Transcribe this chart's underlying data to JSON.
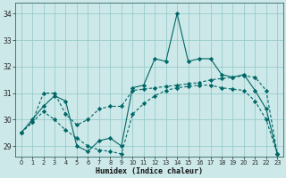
{
  "xlabel": "Humidex (Indice chaleur)",
  "x_ticks": [
    0,
    1,
    2,
    3,
    4,
    5,
    6,
    7,
    8,
    9,
    10,
    11,
    12,
    13,
    14,
    15,
    16,
    17,
    18,
    19,
    20,
    21,
    22,
    23
  ],
  "ylim": [
    28.6,
    34.4
  ],
  "yticks": [
    29,
    30,
    31,
    32,
    33,
    34
  ],
  "xlim": [
    -0.5,
    23.5
  ],
  "bg_color": "#cce8e8",
  "line_color": "#006666",
  "grid_color": "#99cccc",
  "s1_x": [
    0,
    1,
    2,
    3,
    4,
    5,
    6,
    7,
    8,
    9,
    10,
    11,
    12,
    13,
    14,
    15,
    16,
    17,
    18,
    19,
    20,
    21,
    22,
    23
  ],
  "s1_y": [
    29.5,
    30.0,
    30.5,
    30.9,
    30.7,
    29.0,
    28.8,
    29.2,
    29.3,
    29.0,
    31.2,
    31.3,
    32.3,
    32.2,
    34.0,
    32.2,
    32.3,
    32.3,
    31.7,
    31.6,
    31.7,
    31.1,
    30.4,
    28.7
  ],
  "s2_x": [
    0,
    1,
    2,
    3,
    4,
    5,
    6,
    7,
    8,
    9,
    10,
    11,
    12,
    13,
    14,
    15,
    16,
    17,
    18,
    19,
    20,
    21,
    22,
    23
  ],
  "s2_y": [
    29.5,
    29.9,
    31.0,
    31.0,
    30.2,
    29.8,
    30.0,
    30.4,
    30.5,
    30.5,
    31.1,
    31.15,
    31.2,
    31.25,
    31.3,
    31.35,
    31.4,
    31.5,
    31.55,
    31.6,
    31.65,
    31.6,
    31.1,
    28.7
  ],
  "s3_x": [
    0,
    1,
    2,
    3,
    4,
    5,
    6,
    7,
    8,
    9,
    10,
    11,
    12,
    13,
    14,
    15,
    16,
    17,
    18,
    19,
    20,
    21,
    22,
    23
  ],
  "s3_y": [
    29.5,
    29.9,
    30.3,
    30.0,
    29.6,
    29.3,
    29.0,
    28.85,
    28.8,
    28.7,
    30.2,
    30.6,
    30.9,
    31.1,
    31.2,
    31.25,
    31.3,
    31.3,
    31.2,
    31.15,
    31.1,
    30.7,
    30.0,
    28.7
  ]
}
